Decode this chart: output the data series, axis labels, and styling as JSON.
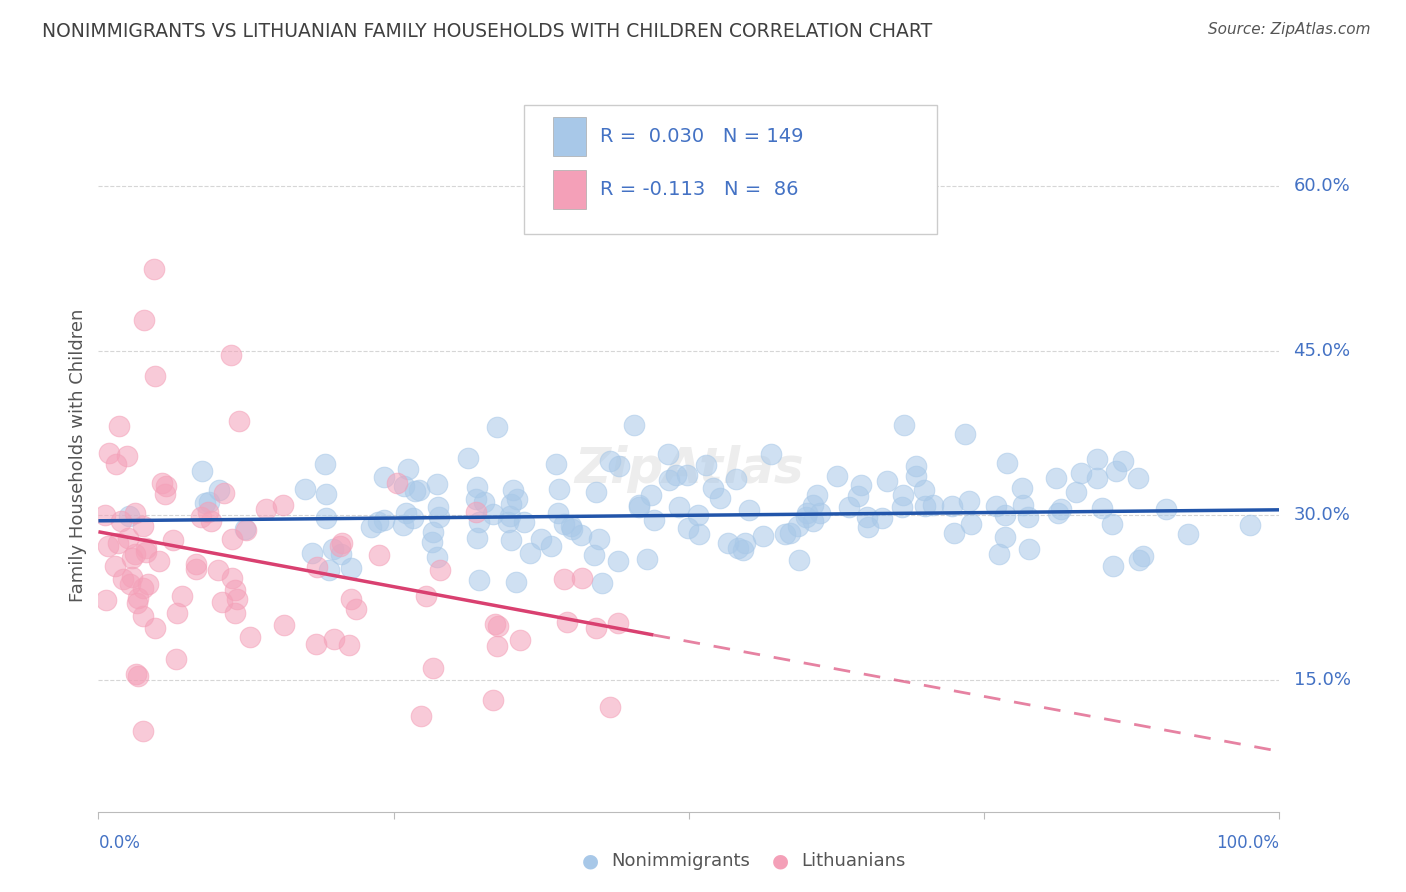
{
  "title": "NONIMMIGRANTS VS LITHUANIAN FAMILY HOUSEHOLDS WITH CHILDREN CORRELATION CHART",
  "source": "Source: ZipAtlas.com",
  "ylabel": "Family Households with Children",
  "ytick_labels": [
    "15.0%",
    "30.0%",
    "45.0%",
    "60.0%"
  ],
  "ytick_values": [
    0.15,
    0.3,
    0.45,
    0.6
  ],
  "legend_label1": "Nonimmigrants",
  "legend_label2": "Lithuanians",
  "R1": 0.03,
  "N1": 149,
  "R2": -0.113,
  "N2": 86,
  "blue_color": "#a8c8e8",
  "pink_color": "#f4a0b8",
  "line_blue": "#2255aa",
  "line_pink": "#d94070",
  "text_blue": "#4472c4",
  "background_color": "#ffffff",
  "grid_color": "#cccccc",
  "title_color": "#404040",
  "watermark": "ZipAtlas",
  "ylim_low": 0.03,
  "ylim_high": 0.68,
  "xlim_low": 0.0,
  "xlim_high": 1.0
}
